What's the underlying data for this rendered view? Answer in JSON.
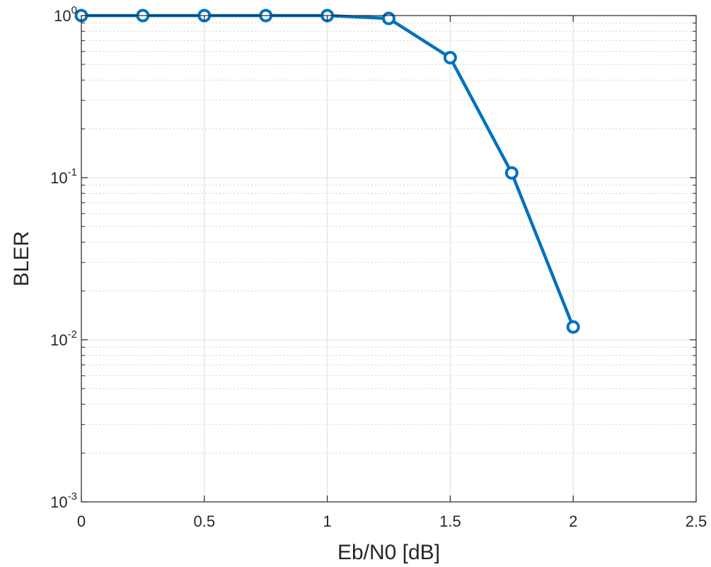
{
  "chart_data": {
    "type": "line",
    "title": "",
    "xlabel": "Eb/N0 [dB]",
    "ylabel": "BLER",
    "x_scale": "linear",
    "y_scale": "log",
    "xlim": [
      0,
      2.5
    ],
    "ylim": [
      0.001,
      1
    ],
    "x_ticks": [
      0,
      0.5,
      1,
      1.5,
      2,
      2.5
    ],
    "x_tick_labels": [
      "0",
      "0.5",
      "1",
      "1.5",
      "2",
      "2.5"
    ],
    "y_ticks": [
      0.001,
      0.01,
      0.1,
      1
    ],
    "y_tick_labels": [
      {
        "base": "10",
        "exp": "-3"
      },
      {
        "base": "10",
        "exp": "-2"
      },
      {
        "base": "10",
        "exp": "-1"
      },
      {
        "base": "10",
        "exp": "0"
      }
    ],
    "grid": true,
    "minor_grid": true,
    "series": [
      {
        "color": "#0072BD",
        "marker": "circle",
        "x": [
          0,
          0.25,
          0.5,
          0.75,
          1.0,
          1.25,
          1.5,
          1.75,
          2.0
        ],
        "y": [
          1.0,
          1.0,
          1.0,
          1.0,
          1.0,
          0.96,
          0.55,
          0.107,
          0.012
        ]
      }
    ]
  }
}
